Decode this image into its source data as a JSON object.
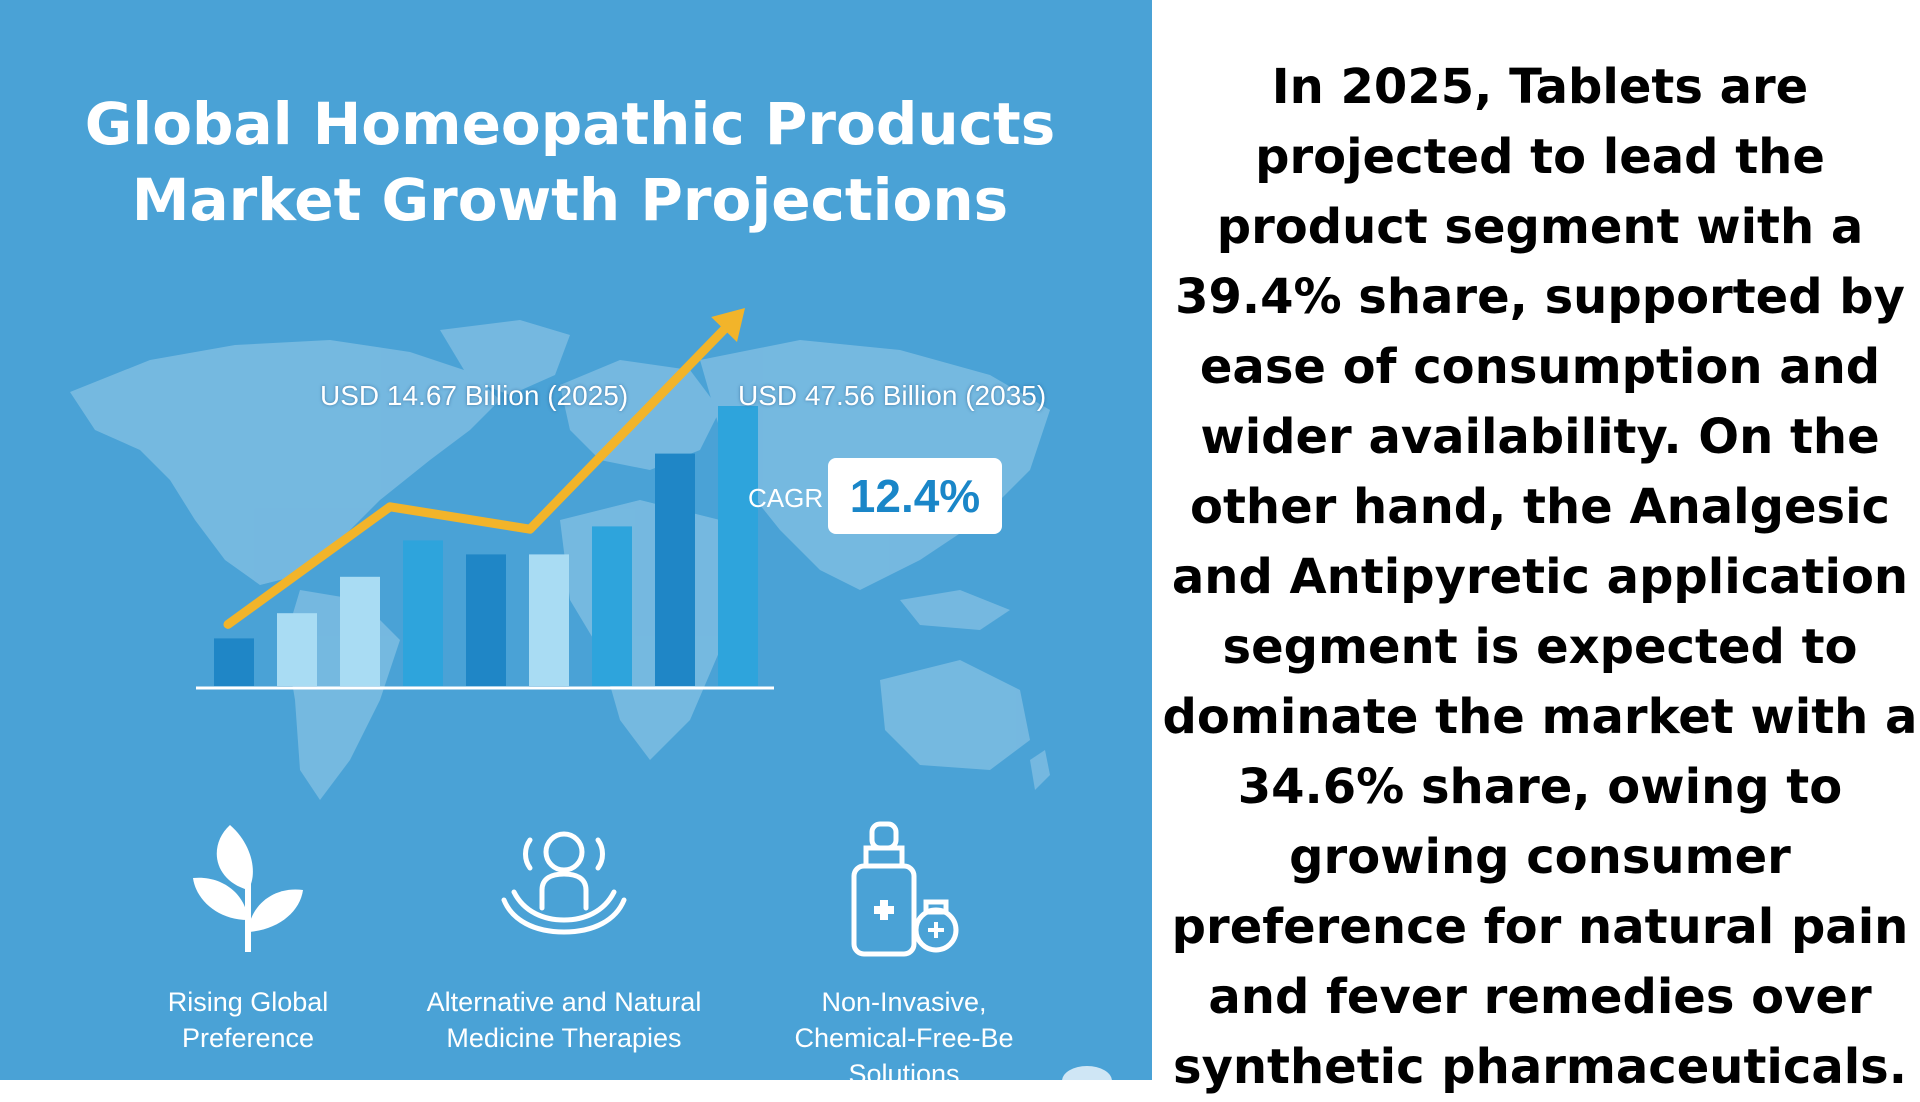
{
  "title": {
    "line1": "Global Homeopathic Products",
    "line2": "Market Growth Projections"
  },
  "chart_data": {
    "type": "bar",
    "title": "Global Homeopathic Products Market Growth Projections",
    "bars": [
      {
        "value": 0.17,
        "color": "#1f86c6"
      },
      {
        "value": 0.26,
        "color": "#a9dcf3"
      },
      {
        "value": 0.39,
        "color": "#a9dcf3"
      },
      {
        "value": 0.52,
        "color": "#2ea4dc"
      },
      {
        "value": 0.47,
        "color": "#1f86c6"
      },
      {
        "value": 0.47,
        "color": "#a9dcf3"
      },
      {
        "value": 0.57,
        "color": "#2ea4dc"
      },
      {
        "value": 0.83,
        "color": "#1f86c6"
      },
      {
        "value": 1.0,
        "color": "#2ea4dc"
      }
    ],
    "trend_points": [
      0.22,
      0.64,
      0.56,
      1.35
    ],
    "trend_color": "#f2b42a",
    "annotations": {
      "start": "USD 14.67 Billion (2025)",
      "end": "USD 47.56 Billion (2035)",
      "cagr_label": "CAGR",
      "cagr_value": "12.4%"
    },
    "grid": false,
    "legend": "none"
  },
  "features": [
    {
      "icon": "leaf-icon",
      "line1": "Rising Global",
      "line2": "Preference",
      "line3": ""
    },
    {
      "icon": "person-in-hands-icon",
      "line1": "Alternative and Natural",
      "line2": "Medicine Therapies",
      "line3": ""
    },
    {
      "icon": "medicine-bottle-icon",
      "line1": "Non-Invasive,",
      "line2": "Chemical-Free-Be",
      "line3": "Solutions"
    }
  ],
  "side_text": "In 2025, Tablets are projected to lead the product segment with a 39.4% share, supported by ease of consumption and wider availability. On the other hand, the Analgesic and Antipyretic application segment is expected to dominate the market with a 34.6% share, owing to growing consumer preference for natural pain and fever remedies over synthetic pharmaceuticals.",
  "colors": {
    "background": "#4aa2d6",
    "map": "#7dbde2",
    "accent": "#f2b42a",
    "cagr_text": "#1a86c8"
  }
}
